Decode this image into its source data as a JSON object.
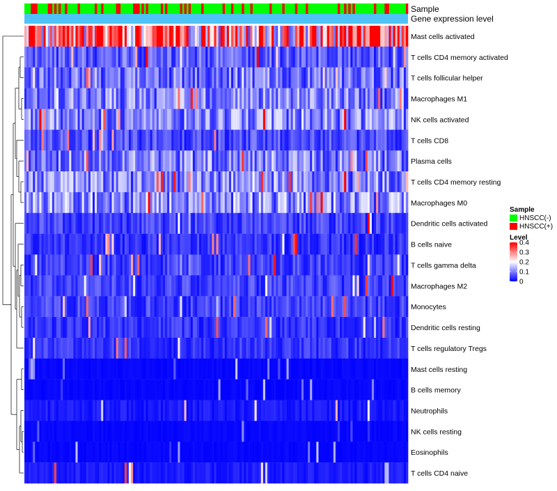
{
  "chart_data": {
    "type": "heatmap",
    "title": "",
    "annotation_rows": [
      "Sample",
      "Gene expression level"
    ],
    "row_labels": [
      "Mast cells activated",
      "T cells CD4 memory activated",
      "T cells follicular helper",
      "Macrophages M1",
      "NK cells activated",
      "T cells CD8",
      "Plasma cells",
      "T cells CD4 memory resting",
      "Macrophages M0",
      "Dendritic cells activated",
      "B cells naive",
      "T cells gamma delta",
      "Macrophages M2",
      "Monocytes",
      "Dendritic cells resting",
      "T cells regulatory  Tregs",
      "Mast cells resting",
      "B cells memory",
      "Neutrophils",
      "NK cells resting",
      "Eosinophils",
      "T cells CD4 naive"
    ],
    "approx_row_mean_level": [
      0.3,
      0.07,
      0.09,
      0.1,
      0.1,
      0.06,
      0.1,
      0.1,
      0.11,
      0.05,
      0.04,
      0.05,
      0.05,
      0.05,
      0.04,
      0.04,
      0.01,
      0.01,
      0.02,
      0.005,
      0.003,
      0.02
    ],
    "n_samples": 180,
    "sample_group_levels": [
      "HNSCC(-)",
      "HNSCC(+)"
    ],
    "sample_group_fraction_positive": 0.15,
    "legend": {
      "sample": {
        "title": "Sample",
        "items": [
          {
            "label": "HNSCC(-)",
            "color": "#00FF00"
          },
          {
            "label": "HNSCC(+)",
            "color": "#FF0000"
          }
        ]
      },
      "level": {
        "title": "Level",
        "range": [
          0,
          0.4
        ],
        "ticks": [
          "0.4",
          "0.3",
          "0.2",
          "0.1",
          "0"
        ],
        "tick_values": [
          0.4,
          0.3,
          0.2,
          0.1,
          0
        ]
      }
    },
    "gene_expression_bar_color": "#4FC3F7",
    "colors": {
      "low": "#0000FF",
      "mid": "#FFFFFF",
      "high": "#FF0000"
    },
    "dendrogram_side": "left",
    "xlabel": "",
    "ylabel": ""
  }
}
